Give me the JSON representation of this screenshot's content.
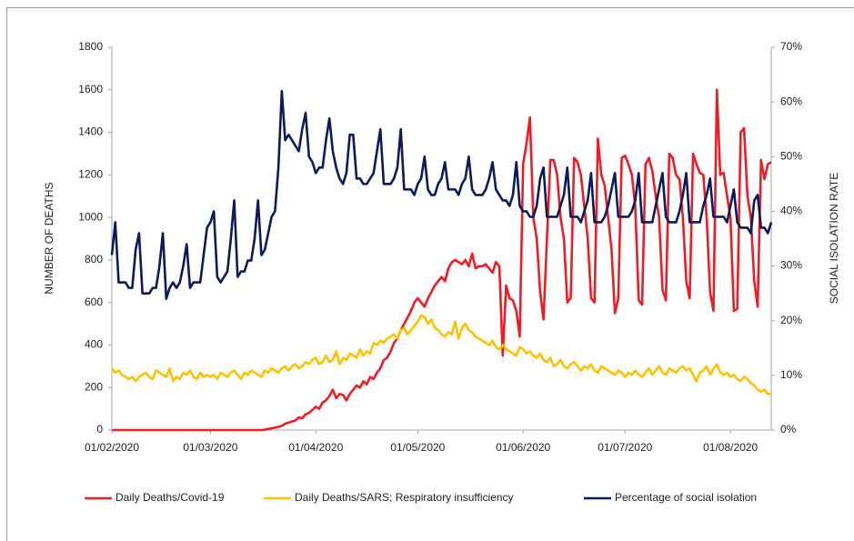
{
  "chart_data": {
    "type": "line",
    "ylabel": "NUMBER OF DEATHS",
    "y2label": "SOCIAL ISOLATION RATE",
    "ylim": [
      0,
      1800
    ],
    "yticks": [
      0,
      200,
      400,
      600,
      800,
      1000,
      1200,
      1400,
      1600,
      1800
    ],
    "y2lim": [
      0,
      70
    ],
    "y2ticks": [
      {
        "value": 0,
        "label": "0%"
      },
      {
        "value": 10,
        "label": "10%"
      },
      {
        "value": 20,
        "label": "20%"
      },
      {
        "value": 30,
        "label": "30%"
      },
      {
        "value": 40,
        "label": "40%"
      },
      {
        "value": 50,
        "label": "50%"
      },
      {
        "value": 60,
        "label": "60%"
      },
      {
        "value": 70,
        "label": "70%"
      }
    ],
    "xlim": [
      "01/02/2020",
      "13/08/2020"
    ],
    "xticks": [
      "01/02/2020",
      "01/03/2020",
      "01/04/2020",
      "01/05/2020",
      "01/06/2020",
      "01/07/2020",
      "01/08/2020"
    ],
    "legend": "bottom",
    "grid": false,
    "x": [
      "01/02/2020",
      "02/02/2020",
      "03/02/2020",
      "04/02/2020",
      "05/02/2020",
      "06/02/2020",
      "07/02/2020",
      "08/02/2020",
      "09/02/2020",
      "10/02/2020",
      "11/02/2020",
      "12/02/2020",
      "13/02/2020",
      "14/02/2020",
      "15/02/2020",
      "16/02/2020",
      "17/02/2020",
      "18/02/2020",
      "19/02/2020",
      "20/02/2020",
      "21/02/2020",
      "22/02/2020",
      "23/02/2020",
      "24/02/2020",
      "25/02/2020",
      "26/02/2020",
      "27/02/2020",
      "28/02/2020",
      "29/02/2020",
      "01/03/2020",
      "02/03/2020",
      "03/03/2020",
      "04/03/2020",
      "05/03/2020",
      "06/03/2020",
      "07/03/2020",
      "08/03/2020",
      "09/03/2020",
      "10/03/2020",
      "11/03/2020",
      "12/03/2020",
      "13/03/2020",
      "14/03/2020",
      "15/03/2020",
      "16/03/2020",
      "17/03/2020",
      "18/03/2020",
      "19/03/2020",
      "20/03/2020",
      "21/03/2020",
      "22/03/2020",
      "23/03/2020",
      "24/03/2020",
      "25/03/2020",
      "26/03/2020",
      "27/03/2020",
      "28/03/2020",
      "29/03/2020",
      "30/03/2020",
      "31/03/2020",
      "01/04/2020",
      "02/04/2020",
      "03/04/2020",
      "04/04/2020",
      "05/04/2020",
      "06/04/2020",
      "07/04/2020",
      "08/04/2020",
      "09/04/2020",
      "10/04/2020",
      "11/04/2020",
      "12/04/2020",
      "13/04/2020",
      "14/04/2020",
      "15/04/2020",
      "16/04/2020",
      "17/04/2020",
      "18/04/2020",
      "19/04/2020",
      "20/04/2020",
      "21/04/2020",
      "22/04/2020",
      "23/04/2020",
      "24/04/2020",
      "25/04/2020",
      "26/04/2020",
      "27/04/2020",
      "28/04/2020",
      "29/04/2020",
      "30/04/2020",
      "01/05/2020",
      "02/05/2020",
      "03/05/2020",
      "04/05/2020",
      "05/05/2020",
      "06/05/2020",
      "07/05/2020",
      "08/05/2020",
      "09/05/2020",
      "10/05/2020",
      "11/05/2020",
      "12/05/2020",
      "13/05/2020",
      "14/05/2020",
      "15/05/2020",
      "16/05/2020",
      "17/05/2020",
      "18/05/2020",
      "19/05/2020",
      "20/05/2020",
      "21/05/2020",
      "22/05/2020",
      "23/05/2020",
      "24/05/2020",
      "25/05/2020",
      "26/05/2020",
      "27/05/2020",
      "28/05/2020",
      "29/05/2020",
      "30/05/2020",
      "31/05/2020",
      "01/06/2020",
      "02/06/2020",
      "03/06/2020",
      "04/06/2020",
      "05/06/2020",
      "06/06/2020",
      "07/06/2020",
      "08/06/2020",
      "09/06/2020",
      "10/06/2020",
      "11/06/2020",
      "12/06/2020",
      "13/06/2020",
      "14/06/2020",
      "15/06/2020",
      "16/06/2020",
      "17/06/2020",
      "18/06/2020",
      "19/06/2020",
      "20/06/2020",
      "21/06/2020",
      "22/06/2020",
      "23/06/2020",
      "24/06/2020",
      "25/06/2020",
      "26/06/2020",
      "27/06/2020",
      "28/06/2020",
      "29/06/2020",
      "30/06/2020",
      "01/07/2020",
      "02/07/2020",
      "03/07/2020",
      "04/07/2020",
      "05/07/2020",
      "06/07/2020",
      "07/07/2020",
      "08/07/2020",
      "09/07/2020",
      "10/07/2020",
      "11/07/2020",
      "12/07/2020",
      "13/07/2020",
      "14/07/2020",
      "15/07/2020",
      "16/07/2020",
      "17/07/2020",
      "18/07/2020",
      "19/07/2020",
      "20/07/2020",
      "21/07/2020",
      "22/07/2020",
      "23/07/2020",
      "24/07/2020",
      "25/07/2020",
      "26/07/2020",
      "27/07/2020",
      "28/07/2020",
      "29/07/2020",
      "30/07/2020",
      "31/07/2020",
      "01/08/2020",
      "02/08/2020",
      "03/08/2020",
      "04/08/2020",
      "05/08/2020",
      "06/08/2020",
      "07/08/2020",
      "08/08/2020",
      "09/08/2020",
      "10/08/2020",
      "11/08/2020",
      "12/08/2020",
      "13/08/2020"
    ],
    "series": [
      {
        "name": "Daily Deaths/Covid-19",
        "color": "#ee1c25",
        "axis": "y",
        "values": [
          0,
          0,
          0,
          0,
          0,
          0,
          0,
          0,
          0,
          0,
          0,
          0,
          0,
          0,
          0,
          0,
          0,
          0,
          0,
          0,
          0,
          0,
          0,
          0,
          0,
          0,
          0,
          0,
          0,
          0,
          0,
          0,
          0,
          0,
          0,
          0,
          0,
          0,
          0,
          0,
          0,
          0,
          0,
          0,
          0,
          2,
          5,
          8,
          12,
          15,
          20,
          30,
          35,
          40,
          45,
          60,
          55,
          75,
          80,
          95,
          110,
          100,
          130,
          140,
          160,
          190,
          150,
          170,
          165,
          140,
          170,
          190,
          210,
          200,
          230,
          215,
          250,
          240,
          270,
          290,
          330,
          340,
          370,
          410,
          430,
          470,
          500,
          530,
          560,
          600,
          620,
          600,
          580,
          620,
          650,
          680,
          700,
          720,
          700,
          760,
          790,
          800,
          790,
          780,
          800,
          770,
          830,
          760,
          770,
          770,
          780,
          760,
          740,
          790,
          770,
          350,
          680,
          620,
          610,
          560,
          440,
          1250,
          1350,
          1470,
          1000,
          900,
          650,
          520,
          900,
          1270,
          1270,
          1200,
          1000,
          900,
          600,
          620,
          1280,
          1260,
          1200,
          1050,
          900,
          620,
          600,
          1370,
          1200,
          1150,
          1000,
          850,
          550,
          620,
          1280,
          1290,
          1250,
          1200,
          1050,
          610,
          590,
          1250,
          1280,
          1220,
          1100,
          1000,
          660,
          610,
          1300,
          1280,
          1200,
          1180,
          1000,
          700,
          620,
          1300,
          1250,
          1210,
          1200,
          1000,
          650,
          560,
          1600,
          1200,
          1210,
          1100,
          1000,
          560,
          570,
          1400,
          1420,
          1100,
          1000,
          700,
          580,
          1270,
          1180,
          1250,
          1260
        ]
      },
      {
        "name": "Daily Deaths/SARS; Respiratory insufficiency",
        "color": "#ffc000",
        "axis": "y",
        "values": [
          290,
          270,
          280,
          260,
          250,
          240,
          250,
          230,
          250,
          260,
          270,
          250,
          240,
          280,
          270,
          260,
          250,
          290,
          230,
          250,
          240,
          270,
          260,
          280,
          250,
          240,
          270,
          250,
          260,
          250,
          260,
          240,
          270,
          260,
          250,
          270,
          280,
          260,
          240,
          270,
          260,
          280,
          270,
          260,
          250,
          280,
          270,
          290,
          280,
          270,
          290,
          300,
          280,
          300,
          310,
          290,
          300,
          320,
          310,
          330,
          340,
          310,
          320,
          350,
          320,
          330,
          370,
          310,
          340,
          330,
          360,
          350,
          340,
          380,
          350,
          370,
          360,
          410,
          400,
          420,
          410,
          430,
          440,
          450,
          430,
          470,
          480,
          450,
          470,
          490,
          510,
          540,
          530,
          500,
          520,
          480,
          470,
          450,
          440,
          460,
          450,
          510,
          430,
          480,
          500,
          470,
          460,
          440,
          430,
          420,
          410,
          400,
          420,
          390,
          380,
          400,
          380,
          370,
          360,
          350,
          390,
          380,
          360,
          370,
          350,
          340,
          360,
          330,
          320,
          340,
          300,
          310,
          330,
          300,
          290,
          310,
          320,
          300,
          280,
          300,
          290,
          310,
          280,
          270,
          300,
          290,
          280,
          270,
          260,
          280,
          270,
          250,
          270,
          260,
          280,
          260,
          250,
          270,
          290,
          260,
          280,
          300,
          270,
          260,
          290,
          280,
          270,
          290,
          300,
          280,
          290,
          260,
          230,
          270,
          280,
          300,
          260,
          290,
          310,
          270,
          260,
          270,
          250,
          260,
          240,
          230,
          250,
          240,
          220,
          210,
          190,
          180,
          190,
          170,
          170
        ]
      },
      {
        "name": "Percentage of social isolation",
        "color": "#0c1a5b",
        "axis": "y2",
        "values": [
          32,
          38,
          27,
          27,
          27,
          26,
          26,
          33,
          36,
          25,
          25,
          25,
          26,
          26,
          30,
          36,
          24,
          26,
          27,
          26,
          27,
          30,
          34,
          26,
          27,
          27,
          27,
          32,
          37,
          38,
          40,
          28,
          27,
          28,
          29,
          35,
          42,
          28,
          29,
          29,
          31,
          31,
          35,
          42,
          32,
          33,
          36,
          39,
          40,
          48,
          62,
          53,
          54,
          53,
          52,
          51,
          55,
          58,
          50,
          49,
          47,
          48,
          48,
          53,
          57,
          51,
          48,
          46,
          45,
          47,
          54,
          54,
          46,
          46,
          45,
          45,
          46,
          47,
          51,
          55,
          45,
          45,
          45,
          46,
          48,
          55,
          44,
          44,
          44,
          43,
          45,
          46,
          50,
          44,
          43,
          43,
          45,
          46,
          49,
          44,
          44,
          44,
          43,
          45,
          46,
          50,
          44,
          43,
          43,
          43,
          44,
          46,
          49,
          44,
          43,
          42,
          42,
          41,
          43,
          49,
          41,
          40,
          40,
          39,
          39,
          41,
          46,
          48,
          39,
          39,
          39,
          39,
          41,
          43,
          48,
          39,
          39,
          39,
          38,
          40,
          42,
          47,
          38,
          38,
          38,
          39,
          41,
          44,
          47,
          39,
          39,
          39,
          39,
          40,
          42,
          47,
          38,
          38,
          38,
          38,
          41,
          44,
          47,
          39,
          38,
          38,
          38,
          40,
          43,
          47,
          38,
          38,
          38,
          38,
          41,
          43,
          46,
          39,
          39,
          39,
          39,
          38,
          41,
          44,
          38,
          37,
          37,
          37,
          36,
          42,
          43,
          37,
          37,
          36,
          38
        ]
      }
    ]
  }
}
